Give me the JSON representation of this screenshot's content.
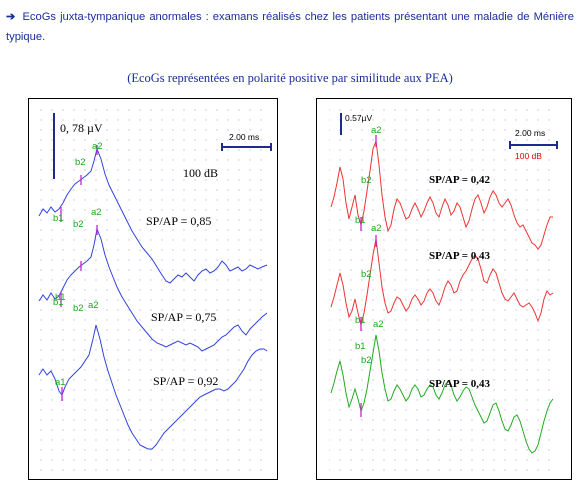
{
  "intro": {
    "arrow": "➔",
    "text": "EcoGs juxta-tympanique anormales : examans réalisés chez les patients présentant une maladie de Ménière typique."
  },
  "note": "(EcoGs représentées en polarité positive par similitude aux PEA)",
  "left_panel": {
    "amplitude_label": "0, 78 µV",
    "time_scale_label": "2.00 ms",
    "level_label": "100 dB",
    "ratios": [
      "SP/AP = 0,85",
      "SP/AP = 0,75",
      "SP/AP = 0,92"
    ],
    "peak_labels": {
      "b1": "b1",
      "b2": "b2",
      "a2": "a2",
      "a1": "a1"
    }
  },
  "right_panel": {
    "amplitude_label": "0.57µV",
    "time_scale_label": "2.00 ms",
    "level_label": "100 dB",
    "ratios": [
      "SP/AP =  0,42",
      "SP/AP =  0,43",
      "SP/AP =  0,43"
    ],
    "peak_labels": {
      "b1": "b1",
      "b2": "b2",
      "a2": "a2"
    }
  },
  "colors": {
    "text": "#1a2d9c",
    "trace_blue": "#3344dd",
    "trace_red": "#ee3333",
    "trace_green": "#22aa22",
    "grid_dot": "#b9c7ea",
    "scale_bar": "#1f2a8f",
    "marker": "#d020d0"
  }
}
